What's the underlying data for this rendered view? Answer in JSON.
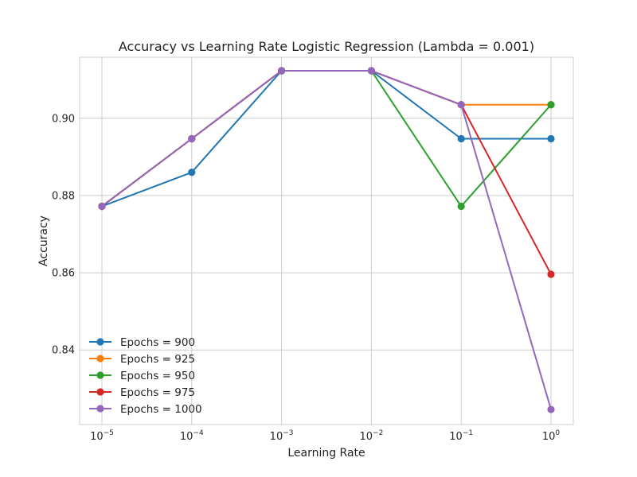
{
  "chart_data": {
    "type": "line",
    "title": "Accuracy vs Learning Rate Logistic Regression (Lambda = 0.001)",
    "xlabel": "Learning Rate",
    "ylabel": "Accuracy",
    "x_scale": "log",
    "x": [
      1e-05,
      0.0001,
      0.001,
      0.01,
      0.1,
      1
    ],
    "x_tick_labels": [
      {
        "base": "10",
        "exp": "−5"
      },
      {
        "base": "10",
        "exp": "−4"
      },
      {
        "base": "10",
        "exp": "−3"
      },
      {
        "base": "10",
        "exp": "−2"
      },
      {
        "base": "10",
        "exp": "−1"
      },
      {
        "base": "10",
        "exp": "0"
      }
    ],
    "y_ticks": [
      0.84,
      0.86,
      0.88,
      0.9
    ],
    "y_tick_labels": [
      "0.84",
      "0.86",
      "0.88",
      "0.90"
    ],
    "ylim": [
      0.8207,
      0.9158
    ],
    "grid": true,
    "legend_position": "lower-left",
    "series": [
      {
        "name": "Epochs = 900",
        "color": "#1f77b4",
        "values": [
          0.8772,
          0.886,
          0.9123,
          0.9123,
          0.8947,
          0.8947
        ]
      },
      {
        "name": "Epochs = 925",
        "color": "#ff7f0e",
        "values": [
          0.8772,
          0.8947,
          0.9123,
          0.9123,
          0.9035,
          0.9035
        ]
      },
      {
        "name": "Epochs = 950",
        "color": "#2ca02c",
        "values": [
          0.8772,
          0.8947,
          0.9123,
          0.9123,
          0.8772,
          0.9035
        ]
      },
      {
        "name": "Epochs = 975",
        "color": "#d62728",
        "values": [
          0.8772,
          0.8947,
          0.9123,
          0.9123,
          0.9035,
          0.8596
        ]
      },
      {
        "name": "Epochs = 1000",
        "color": "#9467bd",
        "values": [
          0.8772,
          0.8947,
          0.9123,
          0.9123,
          0.9035,
          0.8246
        ]
      }
    ]
  }
}
